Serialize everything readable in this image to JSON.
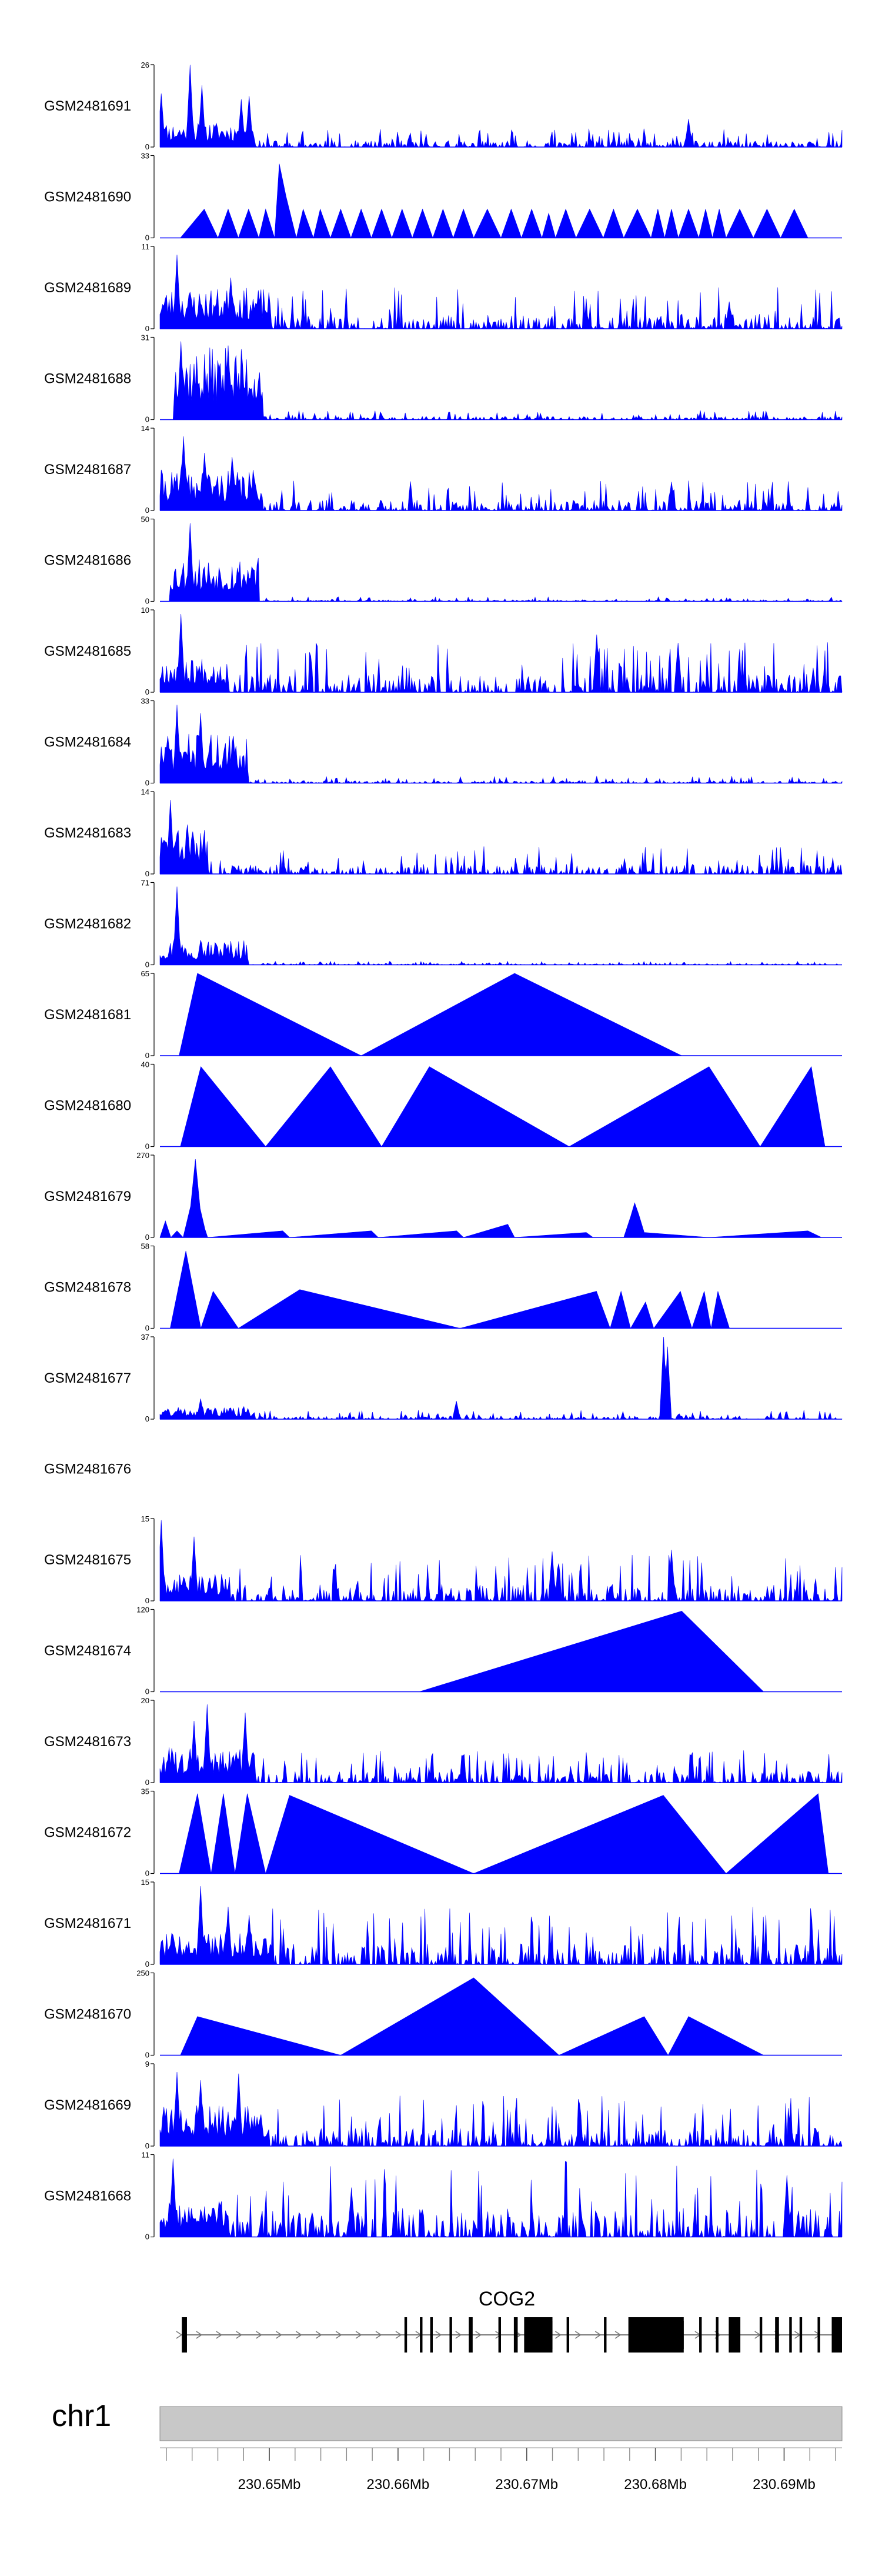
{
  "chart_data": {
    "type": "area",
    "title": "",
    "xlabel": "",
    "fill_color": "#0000ff",
    "axis_color": "#000000",
    "chromosome": "chr1",
    "gene": "COG2",
    "xlim": [
      230.6415,
      230.6945
    ],
    "x_ticks": [
      230.65,
      230.66,
      230.67,
      230.68,
      230.69
    ],
    "x_tick_labels": [
      "230.65Mb",
      "230.66Mb",
      "230.67Mb",
      "230.68Mb",
      "230.69Mb"
    ],
    "tracks": [
      {
        "name": "GSM2481691",
        "ymax": 26,
        "kind": "dense",
        "seed": 11,
        "peaks": [
          [
            0.1,
            0.65
          ],
          [
            4.5,
            1.0
          ],
          [
            6.2,
            0.75
          ],
          [
            11.9,
            0.58
          ],
          [
            13.0,
            0.62
          ],
          [
            77.5,
            0.34
          ]
        ],
        "cluster": [
          0,
          14
        ],
        "clusterLevel": 0.28,
        "bg": 0.08,
        "bgStart": 0
      },
      {
        "name": "GSM2481690",
        "ymax": 33,
        "kind": "tri",
        "points": [
          [
            3,
            0
          ],
          [
            6.5,
            0.35
          ],
          [
            8.5,
            0
          ],
          [
            10,
            0.35
          ],
          [
            11.5,
            0
          ],
          [
            13,
            0.35
          ],
          [
            14.5,
            0
          ],
          [
            15.5,
            0.35
          ],
          [
            16.8,
            0
          ],
          [
            17.5,
            0.9
          ],
          [
            18.5,
            0.5
          ],
          [
            20,
            0
          ],
          [
            21,
            0.35
          ],
          [
            22.5,
            0
          ],
          [
            23.5,
            0.35
          ],
          [
            25,
            0
          ],
          [
            26.5,
            0.35
          ],
          [
            28,
            0
          ],
          [
            29.5,
            0.35
          ],
          [
            31,
            0
          ],
          [
            32.5,
            0.35
          ],
          [
            34,
            0
          ],
          [
            35.5,
            0.35
          ],
          [
            37,
            0
          ],
          [
            38.5,
            0.35
          ],
          [
            40,
            0
          ],
          [
            41.5,
            0.35
          ],
          [
            43,
            0
          ],
          [
            44.5,
            0.35
          ],
          [
            46,
            0
          ],
          [
            48,
            0.35
          ],
          [
            50,
            0
          ],
          [
            51.5,
            0.35
          ],
          [
            53,
            0
          ],
          [
            54.5,
            0.35
          ],
          [
            56,
            0
          ],
          [
            57,
            0.3
          ],
          [
            58,
            0
          ],
          [
            59.5,
            0.35
          ],
          [
            61,
            0
          ],
          [
            63,
            0.35
          ],
          [
            65,
            0
          ],
          [
            66.5,
            0.35
          ],
          [
            68,
            0
          ],
          [
            70,
            0.35
          ],
          [
            72,
            0
          ],
          [
            73,
            0.35
          ],
          [
            74,
            0
          ],
          [
            75,
            0.35
          ],
          [
            76,
            0
          ],
          [
            77.5,
            0.35
          ],
          [
            79,
            0
          ],
          [
            80,
            0.35
          ],
          [
            81,
            0
          ],
          [
            82,
            0.35
          ],
          [
            83,
            0
          ],
          [
            85,
            0.35
          ],
          [
            87,
            0
          ],
          [
            89,
            0.35
          ],
          [
            91,
            0
          ],
          [
            93,
            0.35
          ],
          [
            95,
            0
          ],
          [
            97,
            0
          ]
        ]
      },
      {
        "name": "GSM2481689",
        "ymax": 11,
        "kind": "dense",
        "seed": 23,
        "peaks": [
          [
            2.5,
            0.9
          ],
          [
            10.3,
            0.62
          ],
          [
            83.5,
            0.33
          ]
        ],
        "cluster": [
          0,
          16
        ],
        "clusterLevel": 0.45,
        "bg": 0.18,
        "bgStart": 0
      },
      {
        "name": "GSM2481688",
        "ymax": 31,
        "kind": "dense",
        "seed": 37,
        "peaks": [
          [
            3,
            0.95
          ],
          [
            10,
            0.9
          ]
        ],
        "cluster": [
          2,
          15
        ],
        "clusterLevel": 0.8,
        "bg": 0.04,
        "bgStart": 15
      },
      {
        "name": "GSM2481687",
        "ymax": 14,
        "kind": "dense",
        "seed": 41,
        "peaks": [
          [
            3.5,
            0.9
          ],
          [
            6.5,
            0.7
          ],
          [
            10.5,
            0.65
          ],
          [
            75,
            0.35
          ]
        ],
        "cluster": [
          0,
          15
        ],
        "clusterLevel": 0.45,
        "bg": 0.13,
        "bgStart": 0
      },
      {
        "name": "GSM2481686",
        "ymax": 50,
        "kind": "dense",
        "seed": 53,
        "peaks": [
          [
            4.5,
            0.95
          ],
          [
            13.5,
            0.42
          ]
        ],
        "cluster": [
          1.5,
          14.5
        ],
        "clusterLevel": 0.5,
        "bg": 0.02,
        "bgStart": 15
      },
      {
        "name": "GSM2481685",
        "ymax": 10,
        "kind": "dense",
        "seed": 67,
        "peaks": [
          [
            3,
            0.95
          ],
          [
            64,
            0.7
          ],
          [
            76,
            0.6
          ]
        ],
        "cluster": [
          0,
          10
        ],
        "clusterLevel": 0.4,
        "bg": 0.22,
        "bgStart": 0
      },
      {
        "name": "GSM2481684",
        "ymax": 33,
        "kind": "dense",
        "seed": 71,
        "peaks": [
          [
            2.5,
            0.95
          ],
          [
            6,
            0.85
          ]
        ],
        "cluster": [
          0,
          13
        ],
        "clusterLevel": 0.55,
        "bg": 0.03,
        "bgStart": 13
      },
      {
        "name": "GSM2481683",
        "ymax": 14,
        "kind": "dense",
        "seed": 83,
        "peaks": [
          [
            1.5,
            0.9
          ],
          [
            4,
            0.6
          ]
        ],
        "cluster": [
          0,
          7
        ],
        "clusterLevel": 0.5,
        "bg": 0.12,
        "bgStart": 0
      },
      {
        "name": "GSM2481682",
        "ymax": 71,
        "kind": "dense",
        "seed": 97,
        "peaks": [
          [
            2.5,
            0.95
          ],
          [
            6,
            0.3
          ]
        ],
        "cluster": [
          0,
          13
        ],
        "clusterLevel": 0.28,
        "bg": 0.015,
        "bgStart": 13
      },
      {
        "name": "GSM2481681",
        "ymax": 65,
        "kind": "tri",
        "points": [
          [
            2.8,
            0
          ],
          [
            5.5,
            1.0
          ],
          [
            29.5,
            0
          ],
          [
            52,
            1.0
          ],
          [
            76.5,
            0
          ]
        ]
      },
      {
        "name": "GSM2481680",
        "ymax": 40,
        "kind": "tri",
        "points": [
          [
            3,
            0
          ],
          [
            6,
            0.97
          ],
          [
            15.5,
            0
          ],
          [
            25,
            0.97
          ],
          [
            32.5,
            0
          ],
          [
            39.5,
            0.97
          ],
          [
            60,
            0
          ],
          [
            80.5,
            0.97
          ],
          [
            88,
            0
          ],
          [
            95.5,
            0.97
          ],
          [
            97.5,
            0
          ]
        ]
      },
      {
        "name": "GSM2481679",
        "ymax": 270,
        "kind": "tri",
        "points": [
          [
            0,
            0
          ],
          [
            0.8,
            0.2
          ],
          [
            1.6,
            0
          ],
          [
            2.5,
            0.08
          ],
          [
            3.4,
            0
          ],
          [
            4.5,
            0.38
          ],
          [
            5.2,
            0.95
          ],
          [
            5.9,
            0.35
          ],
          [
            6.6,
            0.1
          ],
          [
            7,
            0
          ],
          [
            18,
            0.08
          ],
          [
            19,
            0
          ],
          [
            31,
            0.08
          ],
          [
            32,
            0
          ],
          [
            43.5,
            0.08
          ],
          [
            44.5,
            0
          ],
          [
            51,
            0.16
          ],
          [
            52,
            0
          ],
          [
            62.5,
            0.06
          ],
          [
            63.5,
            0
          ],
          [
            68,
            0
          ],
          [
            69,
            0.25
          ],
          [
            69.6,
            0.42
          ],
          [
            70.2,
            0.28
          ],
          [
            71,
            0.06
          ],
          [
            80.5,
            0
          ],
          [
            95,
            0.08
          ],
          [
            97,
            0
          ]
        ]
      },
      {
        "name": "GSM2481678",
        "ymax": 58,
        "kind": "tri",
        "points": [
          [
            1.5,
            0
          ],
          [
            3.8,
            0.94
          ],
          [
            6,
            0
          ],
          [
            7.8,
            0.45
          ],
          [
            11.5,
            0
          ],
          [
            20.5,
            0.47
          ],
          [
            44,
            0
          ],
          [
            64,
            0.45
          ],
          [
            66,
            0
          ],
          [
            67.6,
            0.45
          ],
          [
            69,
            0
          ],
          [
            71.2,
            0.32
          ],
          [
            72.4,
            0
          ],
          [
            76.3,
            0.45
          ],
          [
            78,
            0
          ],
          [
            79.8,
            0.45
          ],
          [
            80.8,
            0
          ],
          [
            81.8,
            0.45
          ],
          [
            83.5,
            0
          ],
          [
            91.5,
            0
          ]
        ]
      },
      {
        "name": "GSM2481677",
        "ymax": 37,
        "kind": "dense",
        "seed": 131,
        "peaks": [
          [
            6,
            0.25
          ],
          [
            43.5,
            0.22
          ],
          [
            73.8,
            1.0
          ],
          [
            74.4,
            0.88
          ]
        ],
        "cluster": [
          0,
          14
        ],
        "clusterLevel": 0.14,
        "bg": 0.04,
        "bgStart": 0
      },
      {
        "name": "GSM2481676",
        "ymax": null,
        "kind": "empty"
      },
      {
        "name": "GSM2481675",
        "ymax": 15,
        "kind": "dense",
        "seed": 149,
        "peaks": [
          [
            0.2,
            0.98
          ],
          [
            5,
            0.78
          ],
          [
            57.5,
            0.6
          ],
          [
            75,
            0.62
          ]
        ],
        "cluster": [
          0,
          10
        ],
        "clusterLevel": 0.3,
        "bg": 0.2,
        "bgStart": 0
      },
      {
        "name": "GSM2481674",
        "ymax": 120,
        "kind": "tri",
        "points": [
          [
            38,
            0
          ],
          [
            76.5,
            0.98
          ],
          [
            88.5,
            0
          ]
        ]
      },
      {
        "name": "GSM2481673",
        "ymax": 20,
        "kind": "dense",
        "seed": 163,
        "peaks": [
          [
            5,
            0.75
          ],
          [
            7,
            0.95
          ],
          [
            12.5,
            0.85
          ]
        ],
        "cluster": [
          0,
          14
        ],
        "clusterLevel": 0.4,
        "bg": 0.14,
        "bgStart": 0
      },
      {
        "name": "GSM2481672",
        "ymax": 35,
        "kind": "tri",
        "points": [
          [
            2.8,
            0
          ],
          [
            5.5,
            0.97
          ],
          [
            7.5,
            0
          ],
          [
            9.3,
            0.97
          ],
          [
            11,
            0
          ],
          [
            12.8,
            0.97
          ],
          [
            15.5,
            0
          ],
          [
            19,
            0.95
          ],
          [
            46,
            0
          ],
          [
            73.8,
            0.95
          ],
          [
            83,
            0
          ],
          [
            96.5,
            0.97
          ],
          [
            98,
            0
          ]
        ]
      },
      {
        "name": "GSM2481671",
        "ymax": 15,
        "kind": "dense",
        "seed": 181,
        "peaks": [
          [
            6,
            0.95
          ],
          [
            10,
            0.7
          ],
          [
            13,
            0.6
          ]
        ],
        "cluster": [
          0,
          16
        ],
        "clusterLevel": 0.35,
        "bg": 0.25,
        "bgStart": 0
      },
      {
        "name": "GSM2481670",
        "ymax": 250,
        "kind": "tri",
        "points": [
          [
            3,
            0
          ],
          [
            5.5,
            0.47
          ],
          [
            26.5,
            0
          ],
          [
            46,
            0.94
          ],
          [
            58.5,
            0
          ],
          [
            71,
            0.47
          ],
          [
            74.5,
            0
          ],
          [
            77.5,
            0.47
          ],
          [
            88.5,
            0
          ]
        ]
      },
      {
        "name": "GSM2481669",
        "ymax": 9,
        "kind": "dense",
        "seed": 197,
        "peaks": [
          [
            2.5,
            0.9
          ],
          [
            6,
            0.8
          ],
          [
            11.5,
            0.88
          ]
        ],
        "cluster": [
          0,
          16
        ],
        "clusterLevel": 0.45,
        "bg": 0.22,
        "bgStart": 0
      },
      {
        "name": "GSM2481668",
        "ymax": 11,
        "kind": "dense",
        "seed": 211,
        "peaks": [
          [
            2,
            0.95
          ],
          [
            28,
            0.6
          ],
          [
            92,
            0.75
          ]
        ],
        "cluster": [
          0,
          10
        ],
        "clusterLevel": 0.4,
        "bg": 0.35,
        "bgStart": 0
      }
    ],
    "gene_model": {
      "blocks": [
        [
          230.6432,
          230.6436
        ],
        [
          230.6605,
          230.6607
        ],
        [
          230.6617,
          230.6619
        ],
        [
          230.6625,
          230.6627
        ],
        [
          230.664,
          230.6642
        ],
        [
          230.6655,
          230.6658
        ],
        [
          230.6678,
          230.668
        ],
        [
          230.669,
          230.6693
        ],
        [
          230.6698,
          230.672
        ],
        [
          230.6731,
          230.6733
        ],
        [
          230.676,
          230.6762
        ],
        [
          230.6779,
          230.6822
        ],
        [
          230.6834,
          230.6836
        ],
        [
          230.6847,
          230.6849
        ],
        [
          230.6857,
          230.6866
        ],
        [
          230.6881,
          230.6883
        ],
        [
          230.6893,
          230.6896
        ],
        [
          230.6904,
          230.6906
        ],
        [
          230.6912,
          230.6914
        ],
        [
          230.6926,
          230.6928
        ],
        [
          230.6937,
          230.6945
        ]
      ],
      "tall_blocks": [
        [
          230.6699,
          230.672
        ],
        [
          230.6781,
          230.6822
        ],
        [
          230.6937,
          230.6945
        ]
      ]
    }
  }
}
